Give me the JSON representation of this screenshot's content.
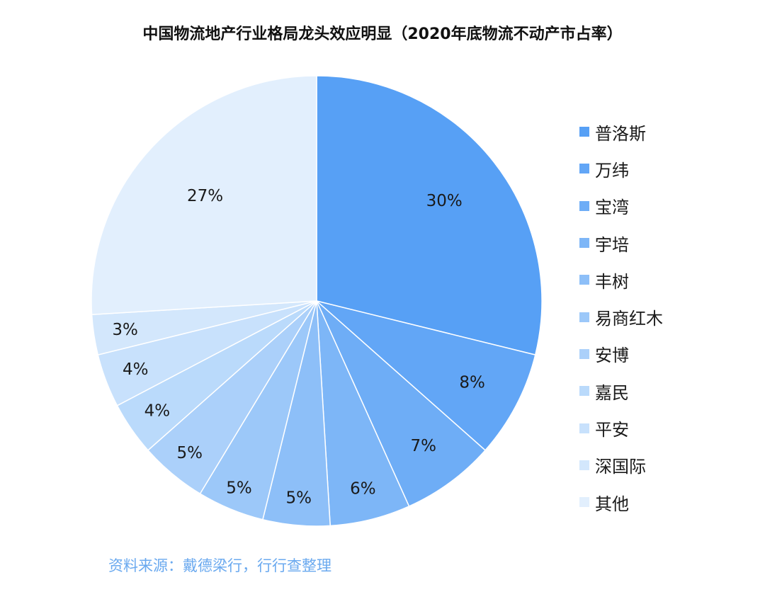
{
  "title": "中国物流地产行业格局龙头效应明显（2020年底物流不动产市占率）",
  "source": "资料来源：戴德梁行，行行查整理",
  "chart_data": {
    "type": "pie",
    "title": "中国物流地产行业格局龙头效应明显（2020年底物流不动产市占率）",
    "legend_position": "right",
    "slices": [
      {
        "label": "普洛斯",
        "value": 30,
        "display": "30%",
        "color": "#57a0f5"
      },
      {
        "label": "万纬",
        "value": 8,
        "display": "8%",
        "color": "#62a6f6"
      },
      {
        "label": "宝湾",
        "value": 7,
        "display": "7%",
        "color": "#6eadf6"
      },
      {
        "label": "宇培",
        "value": 6,
        "display": "6%",
        "color": "#7db6f7"
      },
      {
        "label": "丰树",
        "value": 5,
        "display": "5%",
        "color": "#8dbff8"
      },
      {
        "label": "易商红木",
        "value": 5,
        "display": "5%",
        "color": "#9cc8f9"
      },
      {
        "label": "安博",
        "value": 5,
        "display": "5%",
        "color": "#abd0fa"
      },
      {
        "label": "嘉民",
        "value": 4,
        "display": "4%",
        "color": "#badafb"
      },
      {
        "label": "平安",
        "value": 4,
        "display": "4%",
        "color": "#c8e1fc"
      },
      {
        "label": "深国际",
        "value": 3,
        "display": "3%",
        "color": "#d3e7fc"
      },
      {
        "label": "其他",
        "value": 27,
        "display": "27%",
        "color": "#e2effd"
      }
    ]
  }
}
